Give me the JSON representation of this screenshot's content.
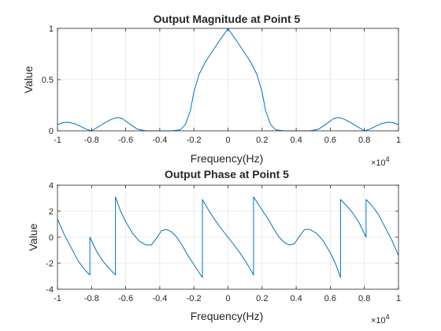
{
  "chart_data": [
    {
      "type": "line",
      "title": "Output Magnitude at Point 5",
      "xlabel": "Frequency(Hz)",
      "ylabel": "Value",
      "xlim": [
        -10000,
        10000
      ],
      "ylim": [
        0,
        1
      ],
      "xticks": [
        -10000,
        -8000,
        -6000,
        -4000,
        -2000,
        0,
        2000,
        4000,
        6000,
        8000,
        10000
      ],
      "xtick_labels": [
        "-1",
        "-0.8",
        "-0.6",
        "-0.4",
        "-0.2",
        "0",
        "0.2",
        "0.4",
        "0.6",
        "0.8",
        "1"
      ],
      "yticks": [
        0,
        0.5,
        1
      ],
      "ytick_labels": [
        "0",
        "0.5",
        "1"
      ],
      "x_exponent_label": "×10",
      "x_exponent_power": "4",
      "grid": true,
      "series": [
        {
          "color": "#0072BD",
          "x": [
            -10000,
            -9700,
            -9400,
            -9000,
            -8600,
            -8300,
            -8000,
            -7600,
            -7200,
            -6800,
            -6500,
            -6200,
            -5800,
            -5300,
            -4800,
            -4300,
            -3800,
            -3300,
            -2800,
            -2500,
            -2200,
            -2000,
            -1700,
            -1300,
            -900,
            -500,
            -200,
            0,
            200,
            500,
            900,
            1300,
            1700,
            2000,
            2200,
            2500,
            2800,
            3300,
            3800,
            4300,
            4800,
            5300,
            5800,
            6200,
            6500,
            6800,
            7200,
            7600,
            8000,
            8300,
            8600,
            9000,
            9400,
            9700,
            10000
          ],
          "y": [
            0.06,
            0.08,
            0.085,
            0.07,
            0.04,
            0.015,
            0.0,
            0.04,
            0.08,
            0.115,
            0.13,
            0.12,
            0.07,
            0.015,
            0.0,
            0.0,
            0.0,
            0.0,
            0.01,
            0.06,
            0.2,
            0.38,
            0.55,
            0.68,
            0.78,
            0.88,
            0.95,
            1.0,
            0.95,
            0.88,
            0.78,
            0.68,
            0.55,
            0.38,
            0.2,
            0.06,
            0.01,
            0.0,
            0.0,
            0.0,
            0.0,
            0.015,
            0.07,
            0.12,
            0.13,
            0.115,
            0.08,
            0.04,
            0.0,
            0.015,
            0.04,
            0.07,
            0.085,
            0.08,
            0.06
          ]
        }
      ]
    },
    {
      "type": "line",
      "title": "Output Phase at Point 5",
      "xlabel": "Frequency(Hz)",
      "ylabel": "Value",
      "xlim": [
        -10000,
        10000
      ],
      "ylim": [
        -4,
        4
      ],
      "xticks": [
        -10000,
        -8000,
        -6000,
        -4000,
        -2000,
        0,
        2000,
        4000,
        6000,
        8000,
        10000
      ],
      "xtick_labels": [
        "-1",
        "-0.8",
        "-0.6",
        "-0.4",
        "-0.2",
        "0",
        "0.2",
        "0.4",
        "0.6",
        "0.8",
        "1"
      ],
      "yticks": [
        -4,
        -2,
        0,
        2,
        4
      ],
      "ytick_labels": [
        "-4",
        "-2",
        "0",
        "2",
        "4"
      ],
      "x_exponent_label": "×10",
      "x_exponent_power": "4",
      "grid": true,
      "series": [
        {
          "color": "#0072BD",
          "x": [
            -10000,
            -9600,
            -9200,
            -8800,
            -8400,
            -8100,
            -8100,
            -7700,
            -7300,
            -6900,
            -6600,
            -6600,
            -6300,
            -6000,
            -5600,
            -5200,
            -4800,
            -4500,
            -4200,
            -3900,
            -3600,
            -3300,
            -3000,
            -2700,
            -2400,
            -2100,
            -1800,
            -1500,
            -1500,
            -1100,
            -700,
            -300,
            0,
            300,
            700,
            1100,
            1500,
            1500,
            1800,
            2100,
            2400,
            2700,
            3000,
            3300,
            3600,
            3900,
            4200,
            4500,
            4800,
            5200,
            5600,
            6000,
            6300,
            6600,
            6600,
            6900,
            7300,
            7700,
            8100,
            8100,
            8400,
            8800,
            9200,
            9600,
            10000
          ],
          "y": [
            1.4,
            0.2,
            -0.8,
            -1.8,
            -2.5,
            -2.9,
            0.0,
            -1.1,
            -1.9,
            -2.5,
            -2.9,
            3.1,
            2.0,
            1.2,
            0.3,
            -0.3,
            -0.6,
            -0.6,
            -0.1,
            0.5,
            0.6,
            0.4,
            0.0,
            -0.6,
            -1.3,
            -1.9,
            -2.5,
            -3.1,
            2.9,
            2.0,
            1.2,
            0.5,
            0.0,
            -0.5,
            -1.2,
            -2.0,
            -2.9,
            3.1,
            2.5,
            1.9,
            1.3,
            0.6,
            0.0,
            -0.4,
            -0.6,
            -0.5,
            0.1,
            0.6,
            0.6,
            0.3,
            -0.3,
            -1.2,
            -2.0,
            -3.1,
            2.9,
            2.5,
            1.9,
            1.1,
            0.0,
            2.9,
            2.5,
            1.8,
            0.8,
            -0.2,
            -1.4
          ]
        }
      ]
    }
  ]
}
